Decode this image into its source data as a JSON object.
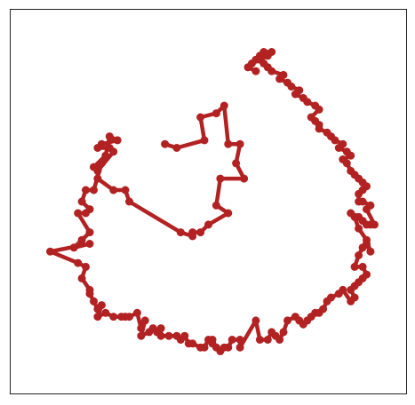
{
  "chart_data": {
    "type": "line",
    "title": "",
    "xlabel": "",
    "ylabel": "",
    "xlim": [
      0,
      100
    ],
    "ylim": [
      0,
      100
    ],
    "grid": false,
    "ticks_visible": false,
    "legend": "none",
    "series": [
      {
        "color": "#b22222",
        "marker": "circle",
        "x": [
          39.0,
          42.0,
          49.0,
          48.0,
          52.0,
          54.0,
          55.0,
          58.0,
          57.0,
          59.0,
          53.0,
          52.0,
          55.0,
          50.0,
          48.0,
          46.0,
          46.0,
          43.0,
          30.0,
          29.0,
          26.0,
          22.0,
          22.0,
          26.0,
          25.0,
          22.0,
          23.0,
          27.0,
          25.0,
          24.0,
          21.0,
          23.0,
          21.0,
          19.0,
          18.0,
          20.0,
          19.0,
          17.0,
          20.0,
          18.0,
          16.0,
          20.0,
          10.0,
          17.0,
          19.0,
          18.0,
          20.0,
          20.0,
          21.0,
          22.0,
          23.0,
          22.0,
          24.0,
          26.0,
          28.0,
          29.0,
          30.0,
          32.0,
          33.0,
          34.0,
          33.0,
          35.0,
          36.0,
          37.0,
          38.0,
          38.0,
          40.0,
          42.0,
          43.0,
          44.0,
          45.0,
          46.0,
          48.0,
          49.0,
          50.0,
          51.0,
          51.0,
          52.0,
          53.0,
          54.0,
          55.0,
          56.0,
          58.0,
          58.0,
          62.0,
          63.0,
          65.0,
          66.0,
          67.0,
          68.0,
          69.0,
          70.0,
          72.0,
          73.0,
          74.0,
          75.0,
          76.0,
          77.0,
          78.0,
          79.0,
          80.0,
          81.0,
          83.0,
          84.0,
          86.0,
          87.0,
          86.0,
          87.0,
          88.0,
          89.0,
          90.0,
          89.0,
          87.0,
          88.0,
          89.0,
          90.0,
          91.0,
          90.0,
          88.0,
          87.0,
          86.0,
          88.0,
          89.0,
          90.0,
          91.0,
          92.0,
          90.0,
          91.0,
          89.0,
          88.0,
          88.0,
          89.0,
          90.0,
          89.0,
          88.0,
          87.0,
          86.0,
          85.0,
          84.0,
          86.0,
          85.0,
          83.0,
          84.0,
          82.0,
          81.0,
          80.0,
          78.0,
          78.0,
          77.0,
          76.0,
          78.0,
          77.0,
          75.0,
          74.0,
          72.0,
          73.0,
          71.0,
          70.0,
          68.0,
          69.0,
          66.0,
          65.0,
          64.0,
          63.0,
          65.0,
          66.0,
          64.0,
          63.0,
          62.0,
          61.0,
          60.0,
          62.0
        ],
        "y": [
          65.0,
          64.0,
          66.0,
          72.0,
          73.0,
          75.0,
          65.0,
          65.0,
          60.0,
          56.0,
          56.0,
          49.0,
          47.0,
          44.0,
          42.0,
          42.0,
          41.0,
          42.0,
          50.0,
          53.0,
          53.0,
          56.0,
          58.0,
          63.0,
          64.0,
          64.0,
          65.0,
          66.0,
          67.0,
          62.0,
          59.0,
          60.0,
          53.0,
          53.0,
          50.0,
          48.0,
          47.0,
          47.0,
          42.0,
          40.0,
          38.0,
          39.0,
          37.0,
          34.0,
          33.0,
          30.0,
          27.0,
          26.0,
          24.0,
          22.0,
          23.0,
          20.0,
          21.0,
          20.0,
          20.0,
          20.0,
          20.0,
          21.0,
          17.0,
          19.0,
          15.0,
          16.0,
          17.0,
          16.0,
          17.0,
          15.0,
          15.0,
          15.0,
          14.0,
          15.0,
          13.0,
          13.0,
          12.0,
          12.0,
          14.0,
          14.0,
          13.0,
          12.0,
          11.0,
          12.0,
          12.0,
          14.0,
          14.0,
          12.0,
          19.0,
          14.0,
          14.0,
          16.0,
          15.0,
          14.0,
          16.0,
          19.0,
          20.0,
          19.0,
          18.0,
          19.0,
          20.0,
          21.0,
          21.0,
          22.0,
          24.0,
          25.0,
          26.0,
          27.0,
          24.0,
          25.0,
          27.0,
          28.0,
          29.0,
          30.0,
          31.0,
          33.0,
          33.0,
          36.0,
          38.0,
          39.0,
          37.0,
          40.0,
          43.0,
          46.0,
          47.0,
          46.0,
          45.0,
          44.0,
          44.0,
          44.0,
          48.0,
          49.0,
          50.0,
          50.0,
          52.0,
          53.0,
          54.0,
          55.0,
          56.0,
          57.0,
          58.0,
          60.0,
          61.0,
          62.0,
          63.0,
          64.0,
          65.0,
          66.0,
          67.0,
          68.0,
          69.0,
          70.0,
          71.0,
          72.0,
          74.0,
          75.0,
          76.0,
          77.0,
          78.0,
          79.0,
          80.0,
          81.0,
          82.0,
          83.0,
          84.0,
          85.0,
          86.0,
          87.0,
          88.0,
          89.0,
          89.0,
          88.0,
          87.0,
          86.0,
          85.0,
          84.0
        ]
      }
    ]
  }
}
